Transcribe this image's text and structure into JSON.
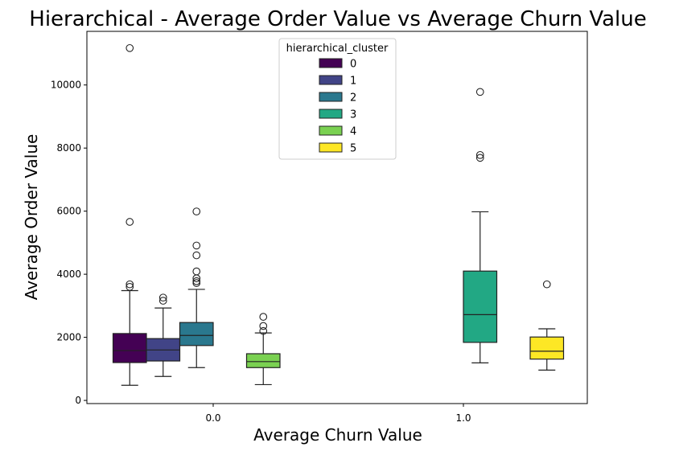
{
  "chart_data": {
    "type": "box",
    "title": "Hierarchical - Average Order Value vs Average Churn Value",
    "xlabel": "Average Churn Value",
    "ylabel": "Average Order Value",
    "x_categories": [
      "0.0",
      "1.0"
    ],
    "ylim": [
      -100,
      11700
    ],
    "yticks": [
      0,
      2000,
      4000,
      6000,
      8000,
      10000
    ],
    "ytick_labels": [
      "0",
      "2000",
      "4000",
      "6000",
      "8000",
      "10000"
    ],
    "legend": {
      "title": "hierarchical_cluster",
      "placement": "top-center",
      "entries": [
        {
          "label": "0",
          "color": "#440154"
        },
        {
          "label": "1",
          "color": "#414487"
        },
        {
          "label": "2",
          "color": "#2a788e"
        },
        {
          "label": "3",
          "color": "#22a884"
        },
        {
          "label": "4",
          "color": "#7ad151"
        },
        {
          "label": "5",
          "color": "#fde725"
        }
      ]
    },
    "boxes": [
      {
        "category": "0.0",
        "cluster": "0",
        "slot": 0,
        "color": "#440154",
        "whisker_low": 480,
        "q1": 1200,
        "median": 1580,
        "q3": 2120,
        "whisker_high": 3480,
        "outliers": [
          3600,
          3680,
          5660,
          11170
        ]
      },
      {
        "category": "0.0",
        "cluster": "1",
        "slot": 1,
        "color": "#414487",
        "whisker_low": 760,
        "q1": 1250,
        "median": 1600,
        "q3": 1960,
        "whisker_high": 2930,
        "outliers": [
          3160,
          3260
        ]
      },
      {
        "category": "0.0",
        "cluster": "2",
        "slot": 2,
        "color": "#2a788e",
        "whisker_low": 1040,
        "q1": 1740,
        "median": 2060,
        "q3": 2470,
        "whisker_high": 3520,
        "outliers": [
          3720,
          3780,
          3870,
          4090,
          4600,
          4910,
          5990
        ]
      },
      {
        "category": "0.0",
        "cluster": "4",
        "slot": 4,
        "color": "#7ad151",
        "whisker_low": 500,
        "q1": 1040,
        "median": 1230,
        "q3": 1480,
        "whisker_high": 2140,
        "outliers": [
          2200,
          2360,
          2650
        ]
      },
      {
        "category": "1.0",
        "cluster": "3",
        "slot": 3,
        "color": "#22a884",
        "whisker_low": 1190,
        "q1": 1840,
        "median": 2720,
        "q3": 4100,
        "whisker_high": 5980,
        "outliers": [
          7690,
          7780,
          9780
        ]
      },
      {
        "category": "1.0",
        "cluster": "5",
        "slot": 5,
        "color": "#fde725",
        "whisker_low": 960,
        "q1": 1310,
        "median": 1560,
        "q3": 2010,
        "whisker_high": 2270,
        "outliers": [
          3680
        ]
      }
    ]
  }
}
